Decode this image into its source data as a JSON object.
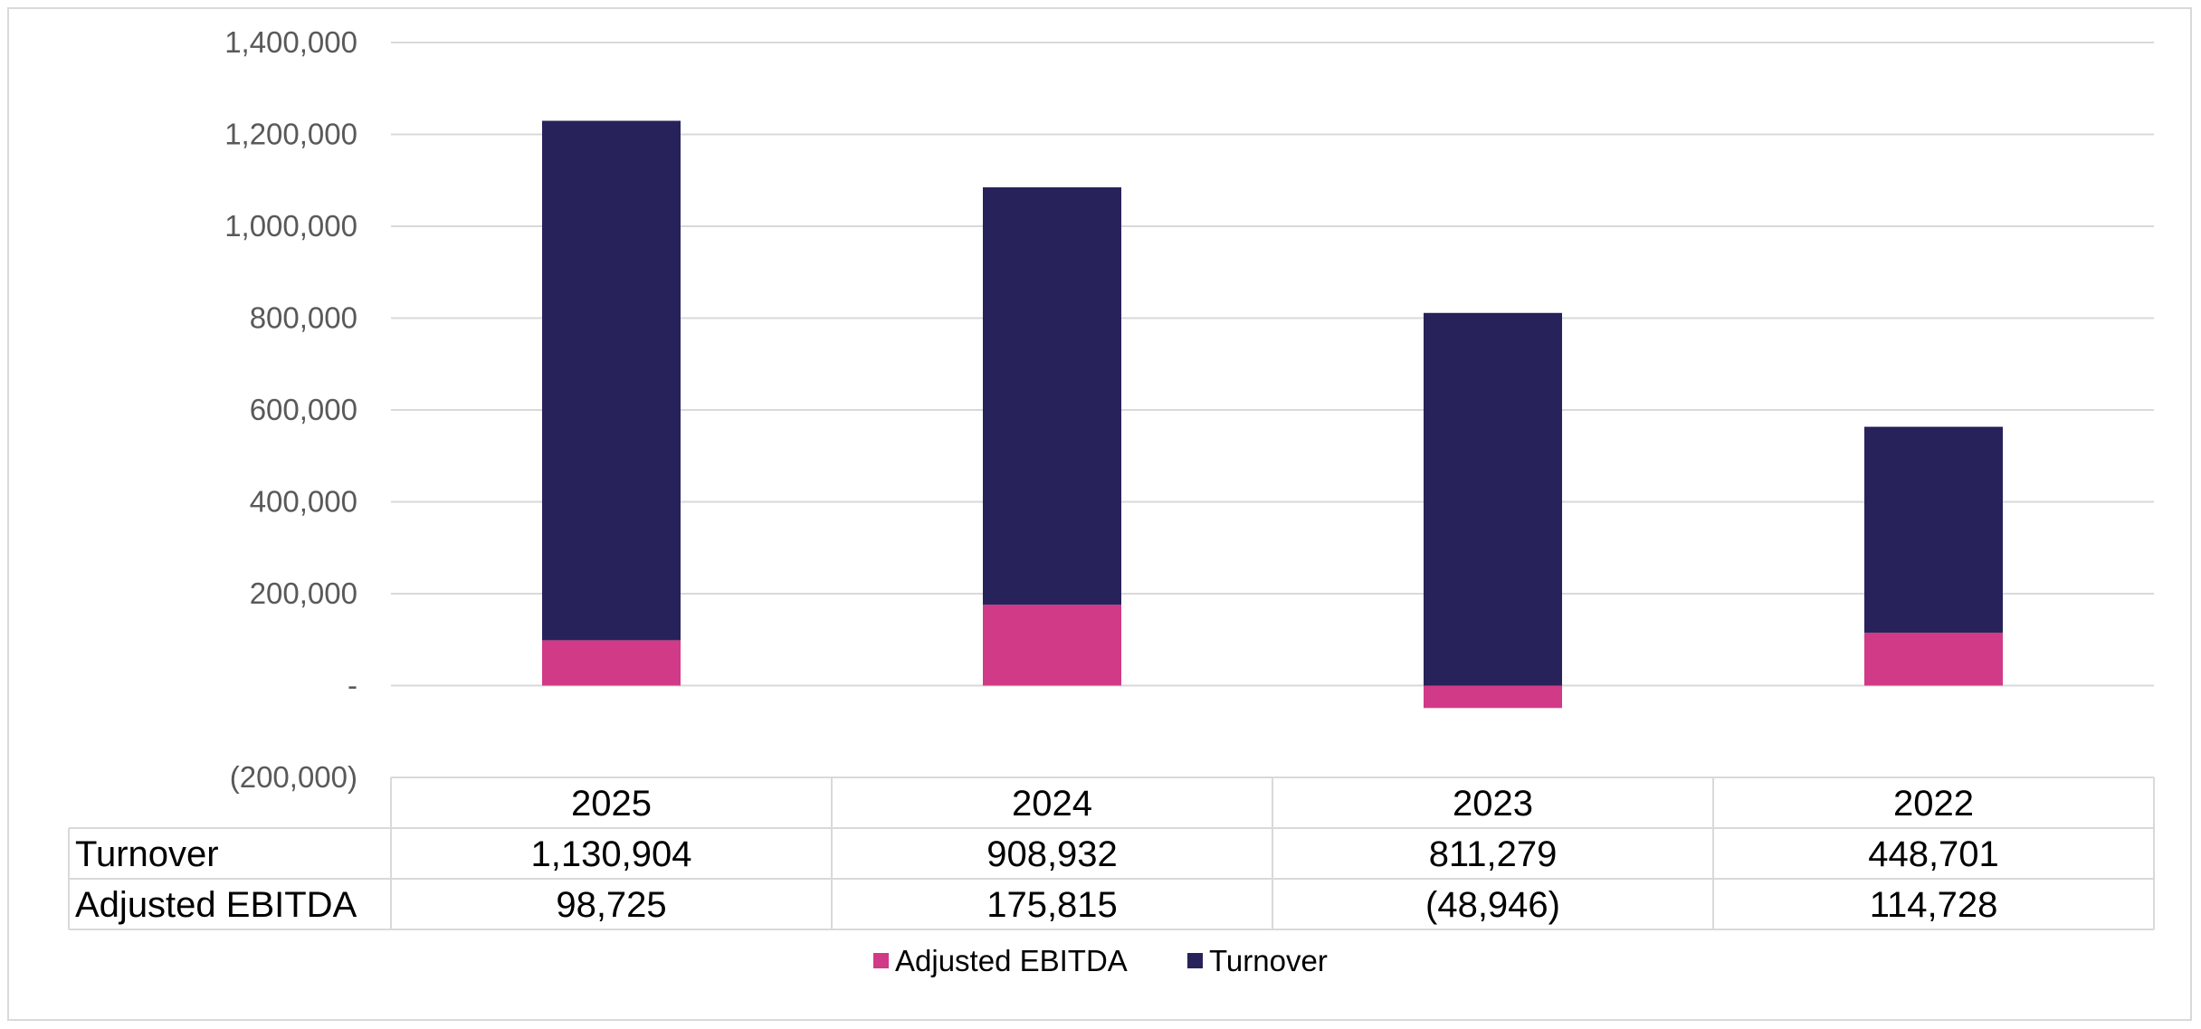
{
  "chart_data": {
    "type": "bar",
    "stacked": true,
    "categories": [
      "2025",
      "2024",
      "2023",
      "2022"
    ],
    "series": [
      {
        "name": "Adjusted EBITDA",
        "values": [
          98725,
          175815,
          -48946,
          114728
        ],
        "display": [
          "98,725",
          "175,815",
          "(48,946)",
          "114,728"
        ],
        "color": "#D03A87"
      },
      {
        "name": "Turnover",
        "values": [
          1130904,
          908932,
          811279,
          448701
        ],
        "display": [
          "1,130,904",
          "908,932",
          "811,279",
          "448,701"
        ],
        "color": "#27225A"
      }
    ],
    "y_ticks": [
      {
        "value": 1400000,
        "label": "1,400,000"
      },
      {
        "value": 1200000,
        "label": "1,200,000"
      },
      {
        "value": 1000000,
        "label": "1,000,000"
      },
      {
        "value": 800000,
        "label": "800,000"
      },
      {
        "value": 600000,
        "label": "600,000"
      },
      {
        "value": 400000,
        "label": "400,000"
      },
      {
        "value": 200000,
        "label": "200,000"
      },
      {
        "value": 0,
        "label": "-"
      },
      {
        "value": -200000,
        "label": "(200,000)"
      }
    ],
    "ylim": [
      -200000,
      1400000
    ],
    "grid": true,
    "data_table": true,
    "legend_position": "bottom",
    "legend": [
      "Adjusted EBITDA",
      "Turnover"
    ]
  }
}
